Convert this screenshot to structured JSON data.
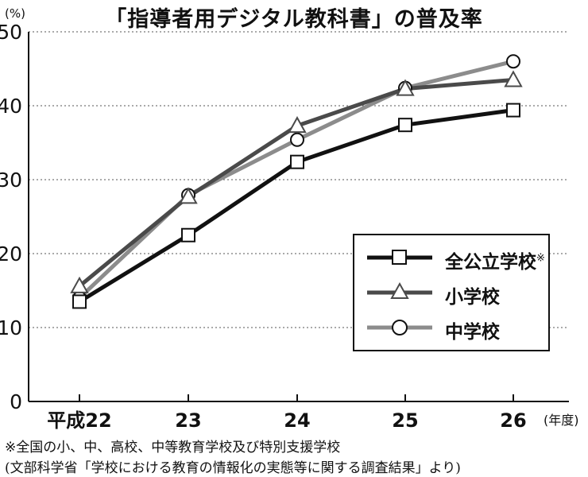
{
  "header": {
    "title": "「指導者用デジタル教科書」の普及率",
    "y_unit": "(%)",
    "x_unit": "(年度)"
  },
  "footer": {
    "note": "※全国の小、中、高校、中等教育学校及び特別支援学校",
    "source": "(文部科学省「学校における教育の情報化の実態等に関する調査結果」より)"
  },
  "chart_data": {
    "type": "line",
    "title": "「指導者用デジタル教科書」の普及率",
    "xlabel": "(年度)",
    "ylabel": "(%)",
    "categories": [
      "平成22",
      "23",
      "24",
      "25",
      "26"
    ],
    "ylim": [
      0,
      50
    ],
    "yticks": [
      "0",
      "10",
      "20",
      "30",
      "40",
      "50"
    ],
    "grid": "horizontal dotted",
    "legend_position": "bottom-right",
    "series": [
      {
        "name": "全公立学校",
        "name_suffix": "※",
        "marker": "square",
        "color": "#111111",
        "values": [
          13.5,
          22.5,
          32.4,
          37.4,
          39.4
        ]
      },
      {
        "name": "小学校",
        "name_suffix": "",
        "marker": "triangle",
        "color": "#4a4a4a",
        "values": [
          15.6,
          27.7,
          37.3,
          42.3,
          43.5
        ]
      },
      {
        "name": "中学校",
        "name_suffix": "",
        "marker": "circle",
        "color": "#8c8c8c",
        "values": [
          14.0,
          27.9,
          35.4,
          42.4,
          46.0
        ]
      }
    ]
  }
}
